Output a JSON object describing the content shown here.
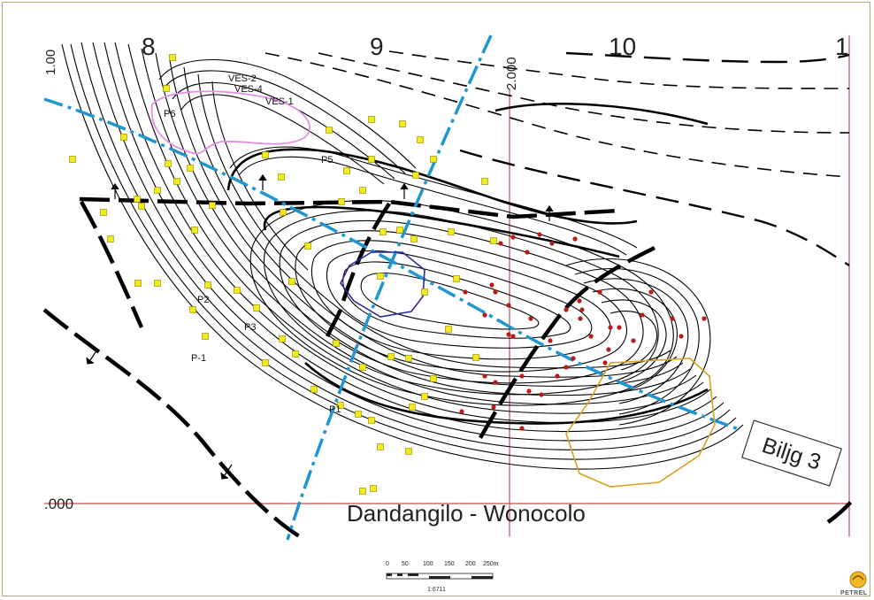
{
  "map": {
    "grid_labels_top": [
      "8",
      "9",
      "10",
      "1"
    ],
    "grid_label_vertical_left": "1.00",
    "grid_label_vertical_mid": "2.000",
    "grid_label_horizontal": ".000",
    "region_label": "Dandangilo - Wonocolo",
    "section_label": "Biljg 3",
    "well_labels": [
      "VES-2",
      "VES-4",
      "VES-1",
      "P6",
      "P5",
      "P2",
      "P3",
      "P-1",
      "P1"
    ],
    "colors": {
      "contour": "#000000",
      "section_line": "#1f96d0",
      "grid_line": "#c0504d",
      "well_yellow": "#f2ea1b",
      "well_red": "#b51c1c",
      "polygon_pink": "#e38fe3",
      "polygon_blue": "#2a2a9c",
      "polygon_gold": "#d9a21f"
    }
  },
  "scale_bar": {
    "ticks": [
      "0",
      "50",
      "100",
      "150",
      "200",
      "250m"
    ],
    "ratio": "1:6711"
  },
  "logo": {
    "text": "PETREL"
  }
}
